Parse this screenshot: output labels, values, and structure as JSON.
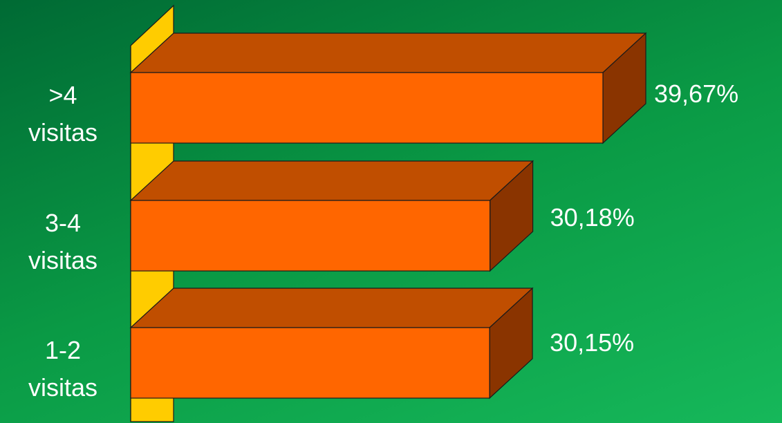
{
  "chart_data": {
    "type": "bar",
    "orientation": "horizontal",
    "style": "3d",
    "categories": [
      ">4 visitas",
      "3-4 visitas",
      "1-2 visitas"
    ],
    "category_lines": [
      [
        ">4",
        "visitas"
      ],
      [
        "3-4",
        "visitas"
      ],
      [
        "1-2",
        "visitas"
      ]
    ],
    "values": [
      39.67,
      30.18,
      30.15
    ],
    "value_labels": [
      "39,67%",
      "30,18%",
      "30,15%"
    ],
    "unit": "%",
    "title": "",
    "xlabel": "",
    "ylabel": "",
    "legend": "none",
    "grid": false
  },
  "colors": {
    "background_top": "#006a34",
    "background_bottom": "#16b85a",
    "bar_front": "#ff6600",
    "bar_top": "#c04e00",
    "bar_side": "#8a3400",
    "wall": "#ffcc00",
    "text": "#ffffff",
    "outline": "#1a1a1a"
  }
}
